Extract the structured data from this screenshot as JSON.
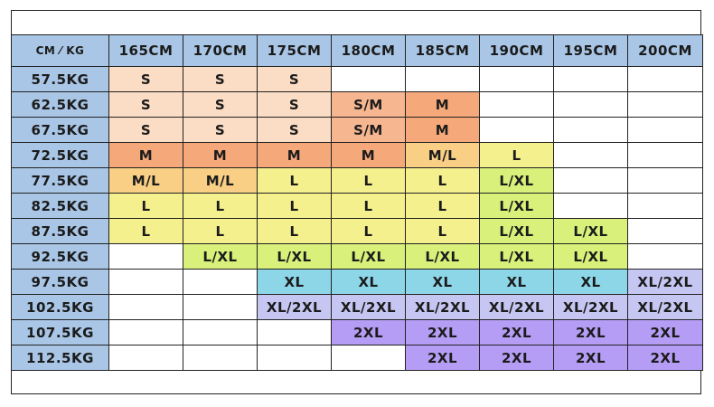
{
  "header": {
    "corner": "CM ⁄ KG",
    "heights": [
      "165CM",
      "170CM",
      "175CM",
      "180CM",
      "185CM",
      "190CM",
      "195CM",
      "200CM"
    ]
  },
  "rows": [
    {
      "weight": "57.5KG",
      "sizes": [
        "S",
        "S",
        "S",
        "",
        "",
        "",
        "",
        ""
      ]
    },
    {
      "weight": "62.5KG",
      "sizes": [
        "S",
        "S",
        "S",
        "S/M",
        "M",
        "",
        "",
        ""
      ]
    },
    {
      "weight": "67.5KG",
      "sizes": [
        "S",
        "S",
        "S",
        "S/M",
        "M",
        "",
        "",
        ""
      ]
    },
    {
      "weight": "72.5KG",
      "sizes": [
        "M",
        "M",
        "M",
        "M",
        "M/L",
        "L",
        "",
        ""
      ]
    },
    {
      "weight": "77.5KG",
      "sizes": [
        "M/L",
        "M/L",
        "L",
        "L",
        "L",
        "L/XL",
        "",
        ""
      ]
    },
    {
      "weight": "82.5KG",
      "sizes": [
        "L",
        "L",
        "L",
        "L",
        "L",
        "L/XL",
        "",
        ""
      ]
    },
    {
      "weight": "87.5KG",
      "sizes": [
        "L",
        "L",
        "L",
        "L",
        "L",
        "L/XL",
        "L/XL",
        ""
      ]
    },
    {
      "weight": "92.5KG",
      "sizes": [
        "",
        "L/XL",
        "L/XL",
        "L/XL",
        "L/XL",
        "L/XL",
        "L/XL",
        ""
      ]
    },
    {
      "weight": "97.5KG",
      "sizes": [
        "",
        "",
        "XL",
        "XL",
        "XL",
        "XL",
        "XL",
        "XL/2XL"
      ]
    },
    {
      "weight": "102.5KG",
      "sizes": [
        "",
        "",
        "XL/2XL",
        "XL/2XL",
        "XL/2XL",
        "XL/2XL",
        "XL/2XL",
        "XL/2XL"
      ]
    },
    {
      "weight": "107.5KG",
      "sizes": [
        "",
        "",
        "",
        "2XL",
        "2XL",
        "2XL",
        "2XL",
        "2XL"
      ]
    },
    {
      "weight": "112.5KG",
      "sizes": [
        "",
        "",
        "",
        "",
        "2XL",
        "2XL",
        "2XL",
        "2XL"
      ]
    }
  ],
  "colors": {
    "header": "#a9c6e6",
    "S": "#fbdcc4",
    "S/M": "#f6b690",
    "M": "#f5a97a",
    "M/L": "#f9cf86",
    "L": "#f5f08e",
    "L/XL": "#d9f07a",
    "XL": "#8dd6e8",
    "XL/2XL": "#c6c6f2",
    "2XL": "#b59df5",
    "empty": "#ffffff"
  }
}
